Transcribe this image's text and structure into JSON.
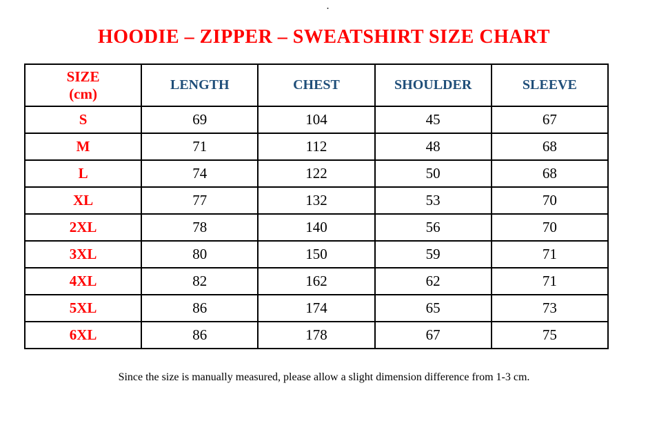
{
  "page": {
    "stray_mark": ".",
    "footnote": "Since the size is manually measured, please allow a slight dimension difference from 1-3 cm."
  },
  "colors": {
    "title_red": "#ff0000",
    "header_blue": "#1f4e79",
    "text_black": "#000000",
    "border_black": "#000000",
    "background": "#ffffff"
  },
  "chart_data": {
    "type": "table",
    "title": "HOODIE – ZIPPER – SWEATSHIRT SIZE CHART",
    "unit": "cm",
    "row_header_label": "SIZE",
    "row_header_unit": "(cm)",
    "columns": [
      "LENGTH",
      "CHEST",
      "SHOULDER",
      "SLEEVE"
    ],
    "rows": [
      {
        "size": "S",
        "values": [
          69,
          104,
          45,
          67
        ]
      },
      {
        "size": "M",
        "values": [
          71,
          112,
          48,
          68
        ]
      },
      {
        "size": "L",
        "values": [
          74,
          122,
          50,
          68
        ]
      },
      {
        "size": "XL",
        "values": [
          77,
          132,
          53,
          70
        ]
      },
      {
        "size": "2XL",
        "values": [
          78,
          140,
          56,
          70
        ]
      },
      {
        "size": "3XL",
        "values": [
          80,
          150,
          59,
          71
        ]
      },
      {
        "size": "4XL",
        "values": [
          82,
          162,
          62,
          71
        ]
      },
      {
        "size": "5XL",
        "values": [
          86,
          174,
          65,
          73
        ]
      },
      {
        "size": "6XL",
        "values": [
          86,
          178,
          67,
          75
        ]
      }
    ],
    "footnote": "Since the size is manually measured, please allow a slight dimension difference from 1-3 cm."
  }
}
